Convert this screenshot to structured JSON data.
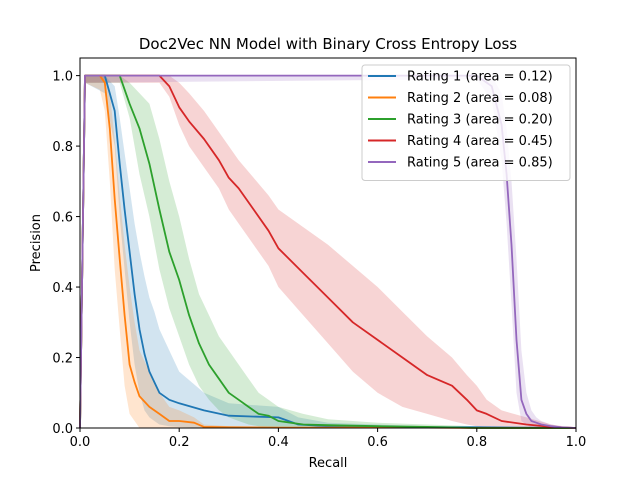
{
  "chart_data": {
    "type": "line",
    "title": "Doc2Vec NN Model with Binary Cross Entropy Loss",
    "xlabel": "Recall",
    "ylabel": "Precision",
    "xlim": [
      0.0,
      1.0
    ],
    "ylim": [
      0.0,
      1.05
    ],
    "xticks": [
      "0.0",
      "0.2",
      "0.4",
      "0.6",
      "0.8",
      "1.0"
    ],
    "yticks": [
      "0.0",
      "0.2",
      "0.4",
      "0.6",
      "0.8",
      "1.0"
    ],
    "grid": false,
    "legend_position": "top-right",
    "series": [
      {
        "name": "Rating 1 (area = 0.12)",
        "color": "#1f77b4",
        "x": [
          0.0,
          0.01,
          0.05,
          0.07,
          0.08,
          0.09,
          0.1,
          0.11,
          0.12,
          0.13,
          0.14,
          0.15,
          0.16,
          0.18,
          0.2,
          0.25,
          0.3,
          0.4,
          0.44,
          0.5,
          0.6,
          0.7,
          0.8,
          0.9,
          1.0
        ],
        "y": [
          0.0,
          1.0,
          1.0,
          0.9,
          0.75,
          0.62,
          0.5,
          0.38,
          0.28,
          0.21,
          0.16,
          0.13,
          0.1,
          0.08,
          0.07,
          0.05,
          0.035,
          0.03,
          0.01,
          0.005,
          0.003,
          0.002,
          0.002,
          0.001,
          0.0
        ],
        "band_upper": [
          0.0,
          1.0,
          1.0,
          0.97,
          0.88,
          0.78,
          0.68,
          0.58,
          0.5,
          0.43,
          0.37,
          0.33,
          0.28,
          0.22,
          0.16,
          0.1,
          0.07,
          0.06,
          0.03,
          0.015,
          0.01,
          0.005,
          0.005,
          0.003,
          0.0
        ],
        "band_lower": [
          0.0,
          0.98,
          0.95,
          0.8,
          0.6,
          0.45,
          0.3,
          0.18,
          0.1,
          0.05,
          0.03,
          0.02,
          0.01,
          0.005,
          0.003,
          0.0,
          0.0,
          0.0,
          0.0,
          0.0,
          0.0,
          0.0,
          0.0,
          0.0,
          0.0
        ]
      },
      {
        "name": "Rating 2 (area = 0.08)",
        "color": "#ff7f0e",
        "x": [
          0.0,
          0.01,
          0.04,
          0.05,
          0.06,
          0.07,
          0.08,
          0.09,
          0.1,
          0.11,
          0.12,
          0.14,
          0.16,
          0.18,
          0.2,
          0.23,
          0.25,
          0.3,
          0.4,
          0.5,
          0.6,
          0.7,
          0.8,
          0.9,
          1.0
        ],
        "y": [
          0.0,
          1.0,
          1.0,
          0.98,
          0.85,
          0.65,
          0.48,
          0.32,
          0.18,
          0.13,
          0.09,
          0.06,
          0.04,
          0.02,
          0.02,
          0.015,
          0.003,
          0.002,
          0.001,
          0.001,
          0.001,
          0.001,
          0.0,
          0.0,
          0.0
        ],
        "band_upper": [
          0.0,
          1.0,
          1.0,
          1.0,
          0.95,
          0.82,
          0.66,
          0.52,
          0.4,
          0.3,
          0.22,
          0.16,
          0.1,
          0.06,
          0.05,
          0.03,
          0.01,
          0.005,
          0.003,
          0.002,
          0.002,
          0.002,
          0.001,
          0.0,
          0.0
        ],
        "band_lower": [
          0.0,
          0.98,
          0.96,
          0.9,
          0.7,
          0.45,
          0.28,
          0.12,
          0.04,
          0.02,
          0.0,
          0.0,
          0.0,
          0.0,
          0.0,
          0.0,
          0.0,
          0.0,
          0.0,
          0.0,
          0.0,
          0.0,
          0.0,
          0.0,
          0.0
        ]
      },
      {
        "name": "Rating 3 (area = 0.20)",
        "color": "#2ca02c",
        "x": [
          0.0,
          0.01,
          0.08,
          0.1,
          0.12,
          0.14,
          0.16,
          0.18,
          0.2,
          0.22,
          0.24,
          0.26,
          0.28,
          0.3,
          0.32,
          0.34,
          0.36,
          0.38,
          0.4,
          0.45,
          0.5,
          0.6,
          0.7,
          0.8,
          0.9,
          1.0
        ],
        "y": [
          0.0,
          1.0,
          1.0,
          0.92,
          0.85,
          0.75,
          0.62,
          0.5,
          0.42,
          0.32,
          0.24,
          0.18,
          0.14,
          0.1,
          0.08,
          0.06,
          0.04,
          0.035,
          0.02,
          0.01,
          0.008,
          0.005,
          0.003,
          0.0,
          0.0,
          0.0
        ],
        "band_upper": [
          0.0,
          1.0,
          1.0,
          0.98,
          0.95,
          0.92,
          0.82,
          0.7,
          0.6,
          0.48,
          0.38,
          0.32,
          0.26,
          0.22,
          0.18,
          0.14,
          0.1,
          0.08,
          0.06,
          0.04,
          0.025,
          0.015,
          0.01,
          0.005,
          0.0,
          0.0
        ],
        "band_lower": [
          0.0,
          0.98,
          0.98,
          0.88,
          0.72,
          0.6,
          0.45,
          0.34,
          0.26,
          0.18,
          0.12,
          0.08,
          0.05,
          0.03,
          0.02,
          0.01,
          0.005,
          0.003,
          0.0,
          0.0,
          0.0,
          0.0,
          0.0,
          0.0,
          0.0,
          0.0
        ]
      },
      {
        "name": "Rating 4 (area = 0.45)",
        "color": "#d62728",
        "x": [
          0.0,
          0.01,
          0.16,
          0.18,
          0.2,
          0.22,
          0.25,
          0.28,
          0.3,
          0.32,
          0.35,
          0.38,
          0.4,
          0.45,
          0.5,
          0.55,
          0.6,
          0.65,
          0.7,
          0.75,
          0.78,
          0.8,
          0.82,
          0.85,
          0.9,
          0.95,
          1.0
        ],
        "y": [
          0.0,
          1.0,
          1.0,
          0.97,
          0.91,
          0.87,
          0.82,
          0.76,
          0.71,
          0.68,
          0.62,
          0.56,
          0.51,
          0.44,
          0.37,
          0.3,
          0.25,
          0.2,
          0.15,
          0.12,
          0.08,
          0.05,
          0.04,
          0.02,
          0.01,
          0.003,
          0.0
        ],
        "band_upper": [
          0.0,
          1.0,
          1.0,
          1.0,
          0.98,
          0.95,
          0.9,
          0.84,
          0.8,
          0.76,
          0.71,
          0.66,
          0.62,
          0.57,
          0.52,
          0.46,
          0.4,
          0.33,
          0.26,
          0.2,
          0.15,
          0.12,
          0.08,
          0.05,
          0.03,
          0.01,
          0.0
        ],
        "band_lower": [
          0.0,
          0.98,
          0.98,
          0.94,
          0.86,
          0.8,
          0.74,
          0.68,
          0.62,
          0.58,
          0.52,
          0.46,
          0.4,
          0.32,
          0.24,
          0.16,
          0.1,
          0.06,
          0.04,
          0.02,
          0.01,
          0.005,
          0.003,
          0.0,
          0.0,
          0.0,
          0.0
        ]
      },
      {
        "name": "Rating 5 (area = 0.85)",
        "color": "#9467bd",
        "x": [
          0.0,
          0.01,
          0.8,
          0.83,
          0.85,
          0.86,
          0.87,
          0.88,
          0.89,
          0.9,
          0.91,
          0.92,
          0.93,
          0.95,
          0.97,
          1.0
        ],
        "y": [
          0.0,
          1.0,
          1.0,
          0.97,
          0.86,
          0.72,
          0.52,
          0.25,
          0.08,
          0.04,
          0.02,
          0.015,
          0.01,
          0.005,
          0.002,
          0.0
        ],
        "band_upper": [
          0.0,
          1.0,
          1.0,
          1.0,
          0.95,
          0.85,
          0.7,
          0.48,
          0.22,
          0.1,
          0.05,
          0.03,
          0.02,
          0.01,
          0.005,
          0.0
        ],
        "band_lower": [
          0.0,
          0.98,
          0.99,
          0.93,
          0.76,
          0.58,
          0.35,
          0.1,
          0.02,
          0.01,
          0.0,
          0.0,
          0.0,
          0.0,
          0.0,
          0.0
        ]
      }
    ]
  }
}
